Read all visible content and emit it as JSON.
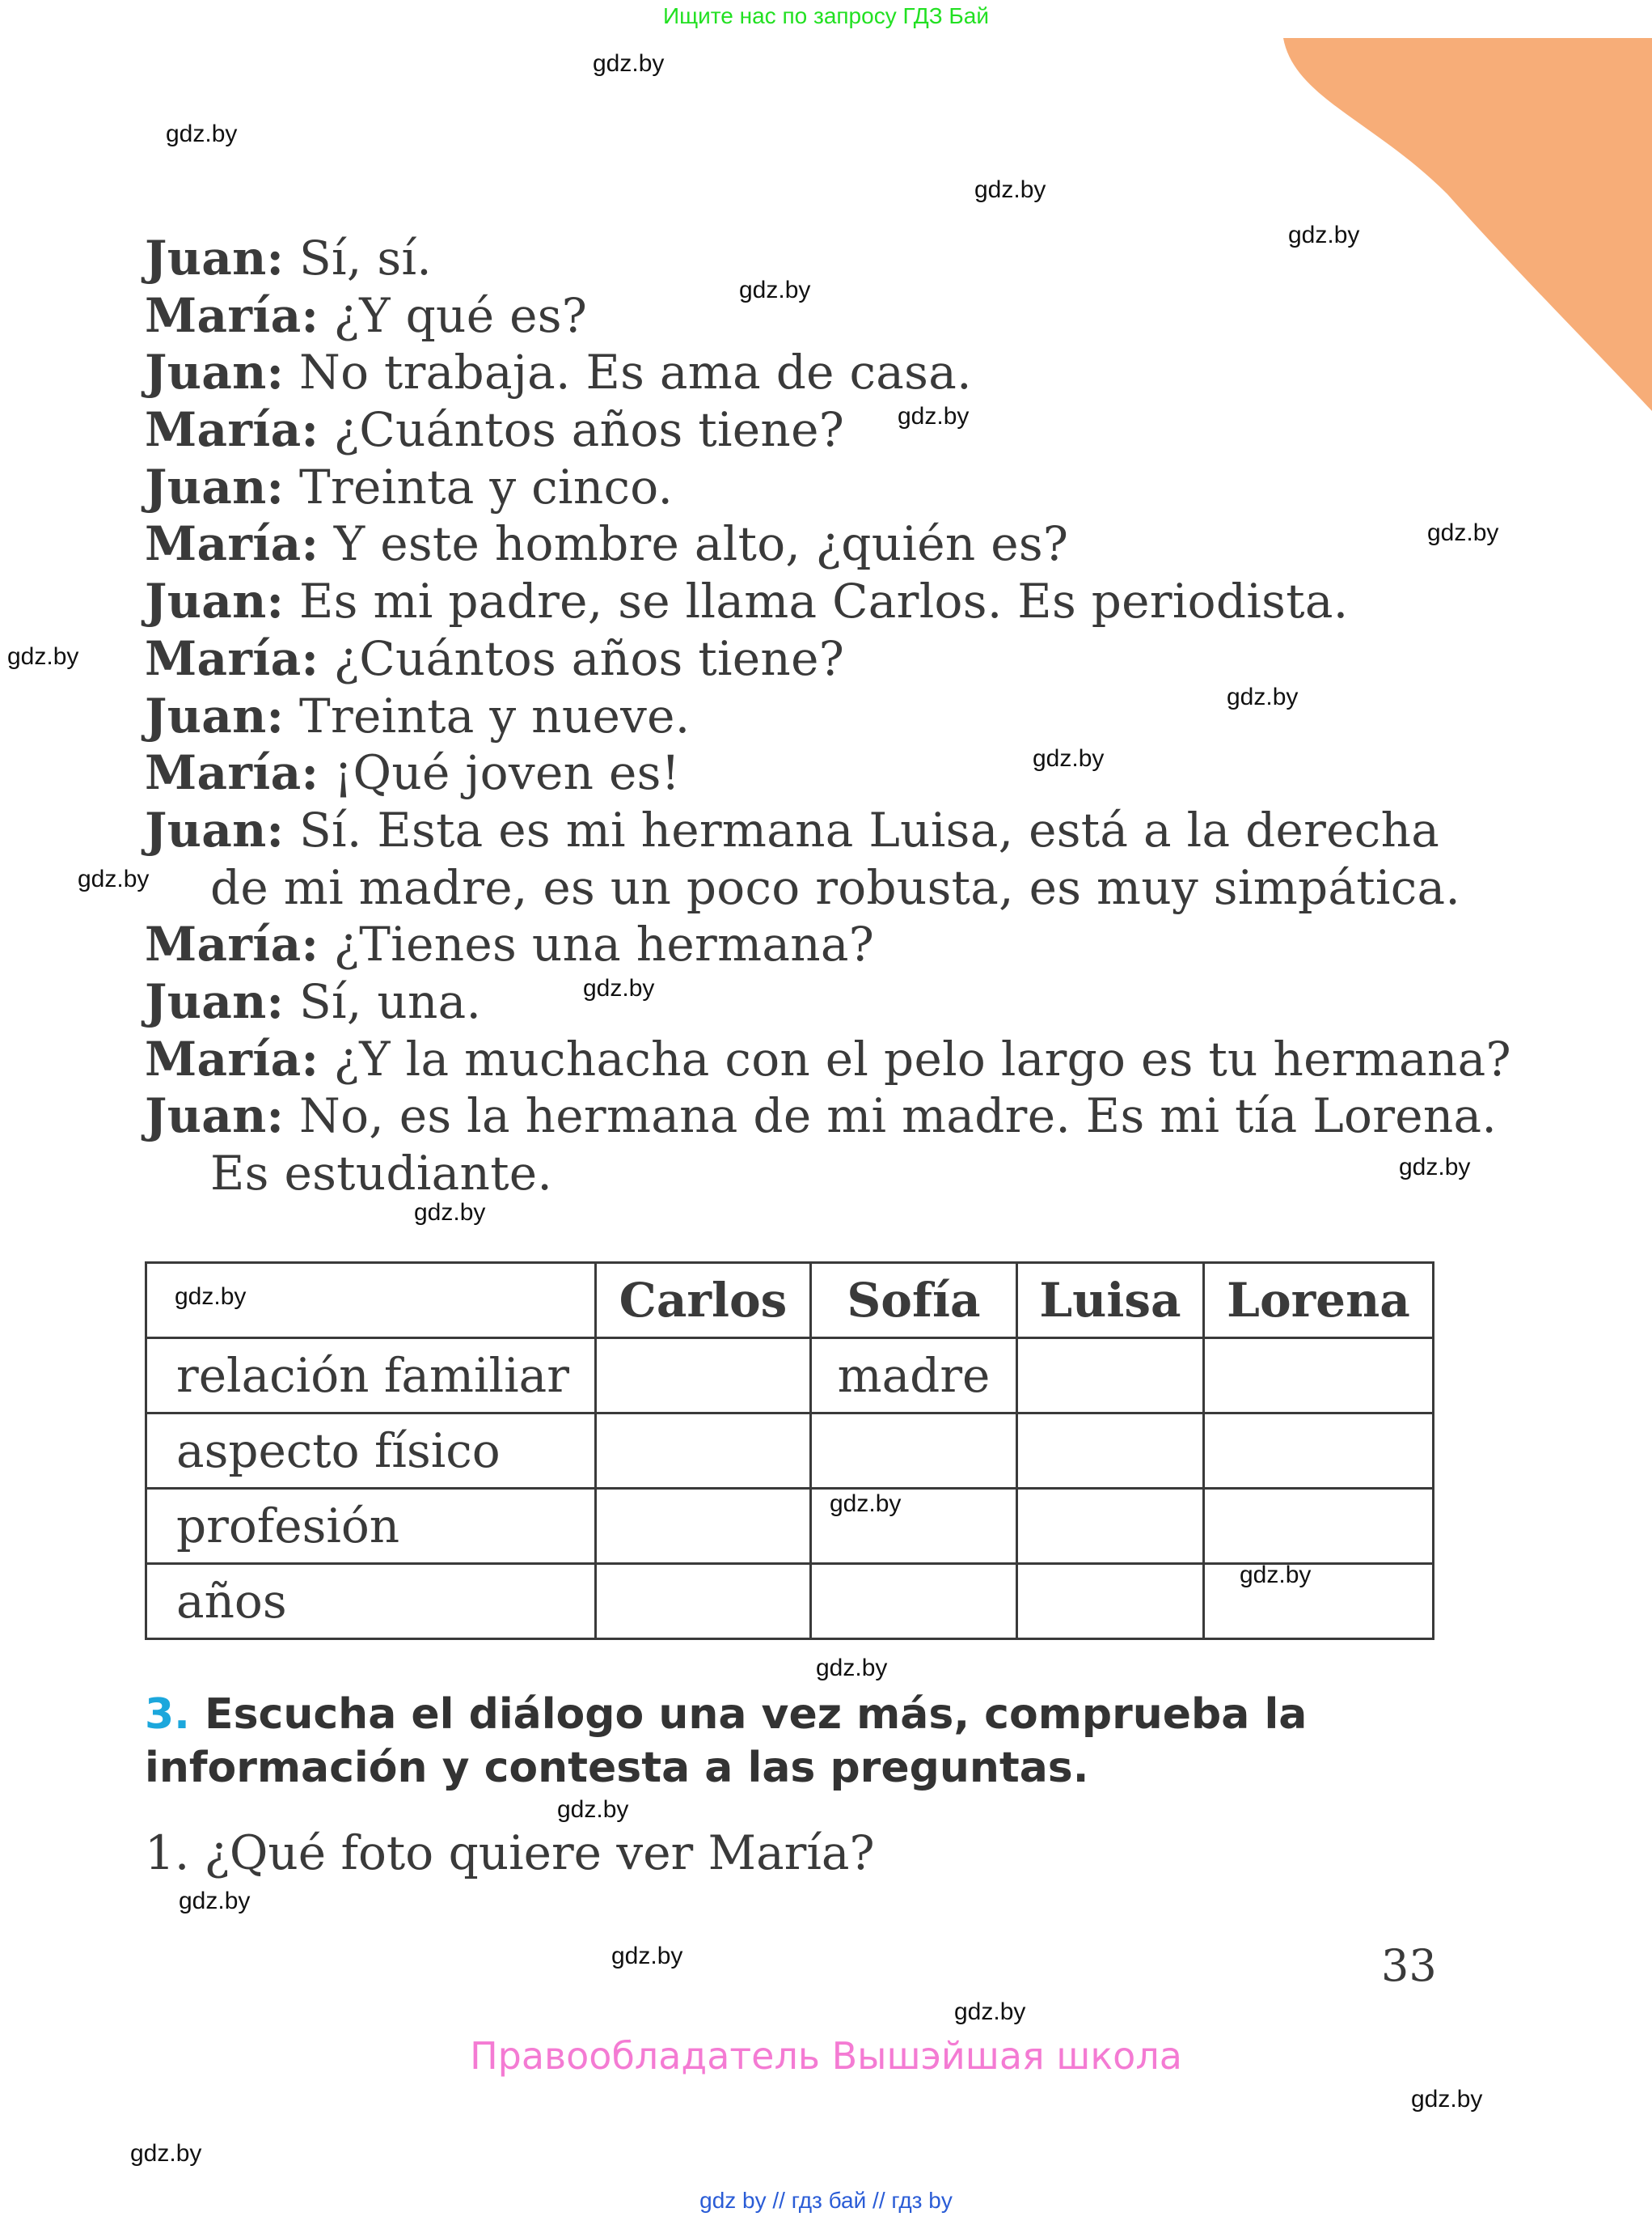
{
  "header": {
    "banner": "Ищите нас по запросу ГДЗ Бай"
  },
  "watermark": "gdz.by",
  "dialog": [
    {
      "speaker": "Juan:",
      "text": " Sí, sí."
    },
    {
      "speaker": "María:",
      "text": " ¿Y qué es?"
    },
    {
      "speaker": "Juan:",
      "text": " No trabaja. Es ama de casa."
    },
    {
      "speaker": "María:",
      "text": " ¿Cuántos años tiene?"
    },
    {
      "speaker": "Juan:",
      "text": " Treinta y cinco."
    },
    {
      "speaker": "María:",
      "text": " Y este hombre alto, ¿quién es?"
    },
    {
      "speaker": "Juan:",
      "text": " Es mi padre, se llama Carlos. Es periodista."
    },
    {
      "speaker": "María:",
      "text": " ¿Cuántos años tiene?"
    },
    {
      "speaker": "Juan:",
      "text": " Treinta y nueve."
    },
    {
      "speaker": "María:",
      "text": " ¡Qué joven es!"
    },
    {
      "speaker": "Juan:",
      "text": " Sí. Esta es mi hermana Luisa, está a la derecha"
    },
    {
      "speaker": "",
      "text": "de mi madre, es un poco robusta, es muy simpática.",
      "indent": true
    },
    {
      "speaker": "María:",
      "text": " ¿Tienes una hermana?"
    },
    {
      "speaker": "Juan:",
      "text": " Sí, una."
    },
    {
      "speaker": "María:",
      "text": " ¿Y la muchacha con el pelo largo es tu hermana?"
    },
    {
      "speaker": "Juan:",
      "text": " No, es la hermana de mi madre. Es mi tía Lorena."
    },
    {
      "speaker": "",
      "text": "Es estudiante.",
      "indent": true
    }
  ],
  "table": {
    "headers": [
      "",
      "Carlos",
      "Sofía",
      "Luisa",
      "Lorena"
    ],
    "rows": [
      {
        "label": "relación familiar",
        "cells": [
          "",
          "madre",
          "",
          ""
        ]
      },
      {
        "label": "aspecto físico",
        "cells": [
          "",
          "",
          "",
          ""
        ]
      },
      {
        "label": "profesión",
        "cells": [
          "",
          "",
          "",
          ""
        ]
      },
      {
        "label": "años",
        "cells": [
          "",
          "",
          "",
          ""
        ]
      }
    ]
  },
  "task": {
    "number": "3.",
    "text": " Escucha el diálogo una vez más, comprueba la información y contesta a las preguntas."
  },
  "question": "1. ¿Qué foto quiere ver María?",
  "page_number": "33",
  "rights": "Правообладатель Вышэйшая школа",
  "footer_links": "gdz by  //  гдз бай  //  гдз by",
  "colors": {
    "accent_orange": "#f7ad78",
    "task_number": "#1ca7dc",
    "rights": "#f47bd3",
    "banner": "#22e022",
    "footer": "#2a5cd6"
  }
}
